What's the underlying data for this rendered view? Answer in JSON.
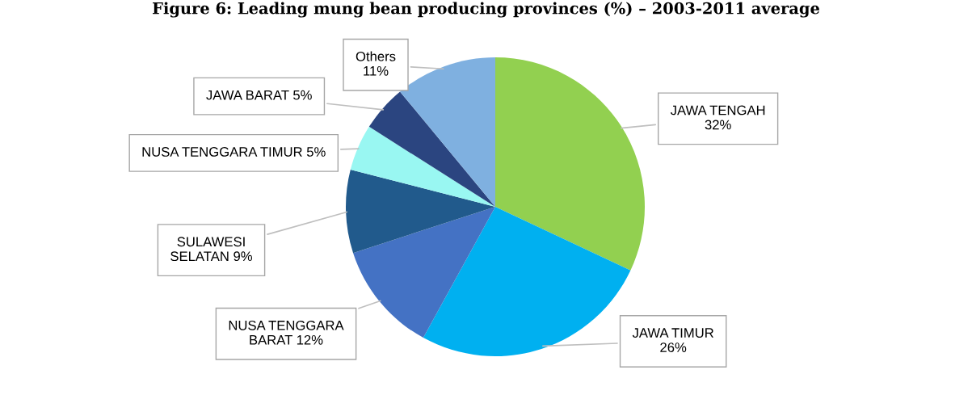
{
  "chart_data": {
    "type": "pie",
    "title": "Figure 6: Leading mung bean producing provinces (%) – 2003-2011 average",
    "categories": [
      "JAWA TENGAH",
      "JAWA TIMUR",
      "NUSA TENGGARA\nBARAT",
      "SULAWESI\nSELATAN",
      "NUSA TENGGARA TIMUR",
      "JAWA BARAT",
      "Others"
    ],
    "values": [
      32,
      26,
      12,
      9,
      5,
      5,
      11
    ],
    "value_labels": [
      "32%",
      "26%",
      "12%",
      "9%",
      "5%",
      "5%",
      "11%"
    ],
    "colors": [
      "#92d050",
      "#00b0f0",
      "#4472c4",
      "#215a8c",
      "#99f7f2",
      "#2b4580",
      "#7fb0e0"
    ],
    "legend": false
  }
}
